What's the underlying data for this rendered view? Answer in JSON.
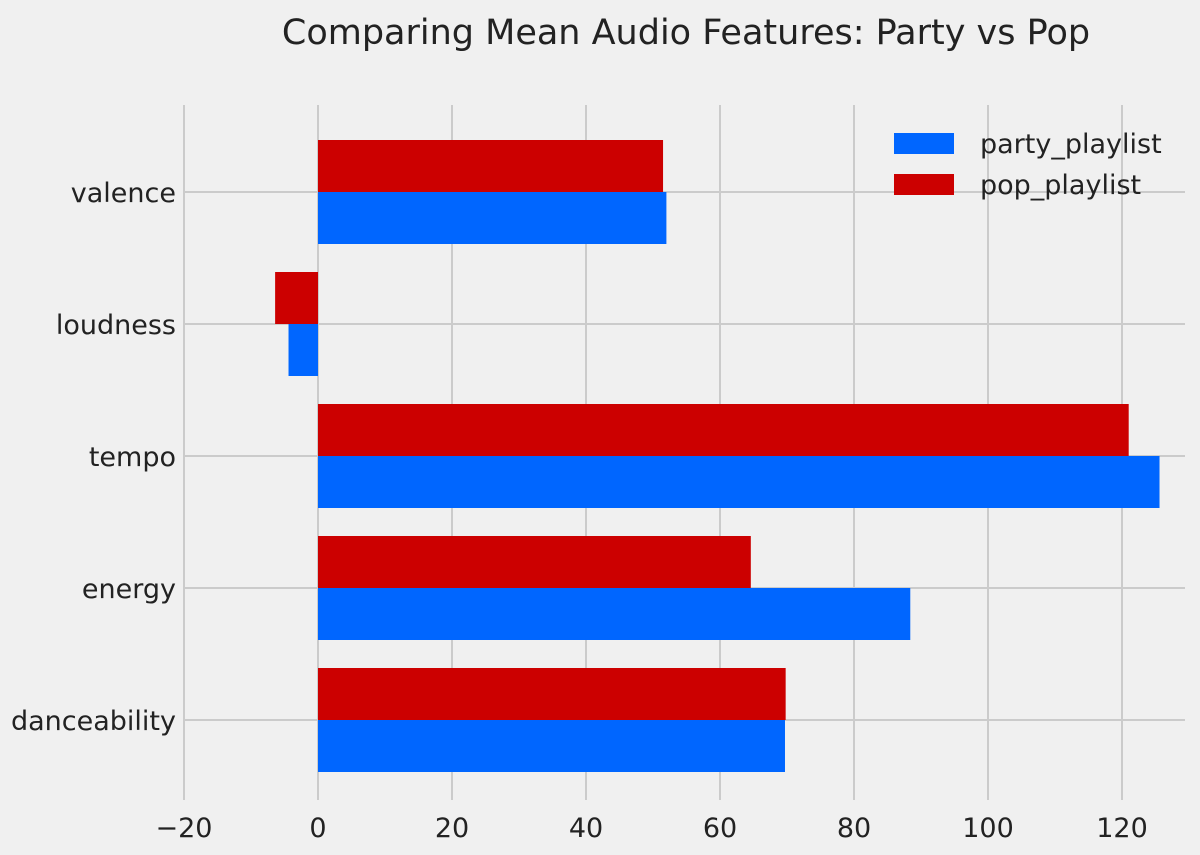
{
  "chart_data": {
    "type": "bar",
    "orientation": "horizontal",
    "title": "Comparing Mean Audio Features: Party vs Pop",
    "xlabel": "",
    "ylabel": "",
    "categories": [
      "danceability",
      "energy",
      "tempo",
      "loudness",
      "valence"
    ],
    "series": [
      {
        "name": "party_playlist",
        "color": "#0066ff",
        "values": [
          69.7,
          88.4,
          125.6,
          -4.4,
          52.0
        ]
      },
      {
        "name": "pop_playlist",
        "color": "#cc0000",
        "values": [
          69.8,
          64.6,
          121.0,
          -6.4,
          51.5
        ]
      }
    ],
    "xlim": [
      -20,
      130
    ],
    "xticks": [
      -20,
      0,
      20,
      40,
      60,
      80,
      100,
      120
    ],
    "xtick_labels": [
      "−20",
      "0",
      "20",
      "40",
      "60",
      "80",
      "100",
      "120"
    ],
    "grid": true,
    "legend_position": "top-right",
    "background": "#f0f0f0"
  }
}
